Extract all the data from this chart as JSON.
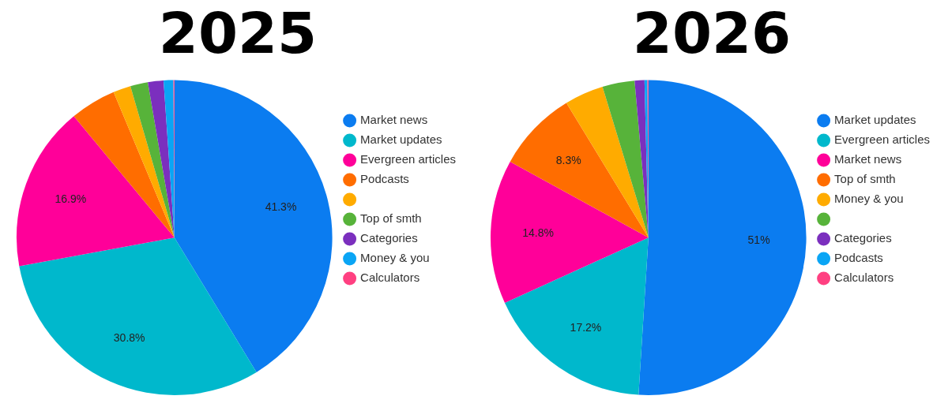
{
  "chart_data": [
    {
      "type": "pie",
      "title": "2025",
      "categories": [
        "Market news",
        "Market updates",
        "Evergreen articles",
        "Podcasts",
        null,
        "Top of smth",
        "Categories",
        "Money & you",
        "Calculators"
      ],
      "values": [
        41.3,
        30.8,
        16.9,
        4.7,
        1.8,
        1.8,
        1.6,
        1.0,
        0.1
      ],
      "value_labels": [
        "41.3%",
        "30.8%",
        "16.9%",
        null,
        null,
        null,
        null,
        null,
        null
      ],
      "colors": [
        "#0b7cf0",
        "#00b8cc",
        "#ff0099",
        "#ff6d00",
        "#ffab00",
        "#57b33a",
        "#7b2fbe",
        "#0aa5f5",
        "#ff4081"
      ],
      "legend": "right"
    },
    {
      "type": "pie",
      "title": "2026",
      "categories": [
        "Market updates",
        "Evergreen articles",
        "Market news",
        "Top of smth",
        "Money & you",
        null,
        "Categories",
        "Podcasts",
        "Calculators"
      ],
      "values": [
        51,
        17.2,
        14.8,
        8.3,
        4.0,
        3.3,
        1.0,
        0.3,
        0.1
      ],
      "value_labels": [
        "51%",
        "17.2%",
        "14.8%",
        "8.3%",
        null,
        null,
        null,
        null,
        null
      ],
      "colors": [
        "#0b7cf0",
        "#00b8cc",
        "#ff0099",
        "#ff6d00",
        "#ffab00",
        "#57b33a",
        "#7b2fbe",
        "#0aa5f5",
        "#ff4081"
      ],
      "legend": "right"
    }
  ]
}
